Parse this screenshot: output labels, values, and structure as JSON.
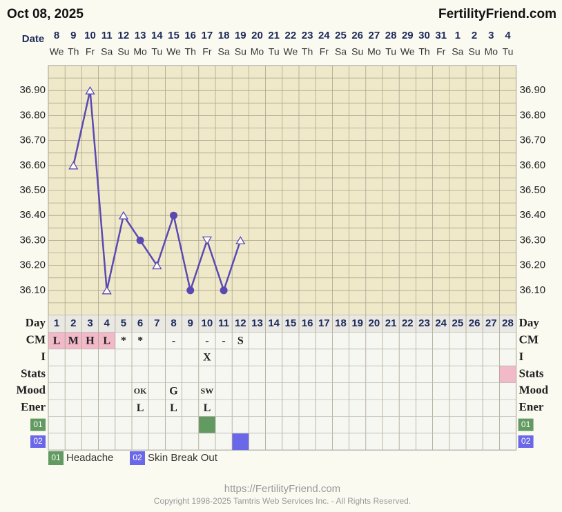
{
  "header": {
    "date": "Oct 08, 2025",
    "site": "FertilityFriend.com"
  },
  "chart_data": {
    "type": "line",
    "x_label": "Date",
    "categories": [
      "8",
      "9",
      "10",
      "11",
      "12",
      "13",
      "14",
      "15",
      "16",
      "17",
      "18",
      "19",
      "20",
      "21",
      "22",
      "23",
      "24",
      "25",
      "26",
      "27",
      "28",
      "29",
      "30",
      "31",
      "1",
      "2",
      "3",
      "4"
    ],
    "weekdays": [
      "We",
      "Th",
      "Fr",
      "Sa",
      "Su",
      "Mo",
      "Tu",
      "We",
      "Th",
      "Fr",
      "Sa",
      "Su",
      "Mo",
      "Tu",
      "We",
      "Th",
      "Fr",
      "Sa",
      "Su",
      "Mo",
      "Tu",
      "We",
      "Th",
      "Fr",
      "Sa",
      "Su",
      "Mo",
      "Tu"
    ],
    "series": [
      {
        "color": "#5a49b3",
        "values": [
          null,
          36.6,
          36.9,
          36.1,
          36.4,
          36.3,
          36.2,
          36.4,
          36.1,
          36.3,
          36.1,
          36.3,
          null,
          null,
          null,
          null,
          null,
          null,
          null,
          null,
          null,
          null,
          null,
          null,
          null,
          null,
          null,
          null
        ],
        "markers": [
          null,
          "triangle",
          "triangle",
          "triangle",
          "triangle",
          "dot",
          "triangle",
          "dot",
          "dot",
          "triangle-down",
          "dot",
          "triangle",
          null,
          null,
          null,
          null,
          null,
          null,
          null,
          null,
          null,
          null,
          null,
          null,
          null,
          null,
          null,
          null
        ]
      }
    ],
    "ylim": [
      36.0,
      37.0
    ],
    "yticks": [
      {
        "value": 36.1,
        "label": "36.10"
      },
      {
        "value": 36.2,
        "label": "36.20"
      },
      {
        "value": 36.3,
        "label": "36.30"
      },
      {
        "value": 36.4,
        "label": "36.40"
      },
      {
        "value": 36.5,
        "label": "36.50"
      },
      {
        "value": 36.6,
        "label": "36.60"
      },
      {
        "value": 36.7,
        "label": "36.70"
      },
      {
        "value": 36.8,
        "label": "36.80"
      },
      {
        "value": 36.9,
        "label": "36.90"
      }
    ],
    "minor_yticks": [
      36.05,
      36.15,
      36.25,
      36.35,
      36.45,
      36.55,
      36.65,
      36.75,
      36.85,
      36.95
    ],
    "grid": true,
    "background": "#efe9c9"
  },
  "table": {
    "day_label": "Day",
    "days": [
      1,
      2,
      3,
      4,
      5,
      6,
      7,
      8,
      9,
      10,
      11,
      12,
      13,
      14,
      15,
      16,
      17,
      18,
      19,
      20,
      21,
      22,
      23,
      24,
      25,
      26,
      27,
      28
    ],
    "rows": [
      {
        "label": "CM",
        "cells": [
          "L",
          "M",
          "H",
          "L",
          "*",
          "*",
          null,
          "-",
          null,
          "-",
          "-",
          "S",
          null,
          null,
          null,
          null,
          null,
          null,
          null,
          null,
          null,
          null,
          null,
          null,
          null,
          null,
          null,
          null
        ],
        "fills": [
          {
            "day": 1,
            "color": "#f2b9c9"
          },
          {
            "day": 2,
            "color": "#f2b9c9"
          },
          {
            "day": 3,
            "color": "#f2b9c9"
          },
          {
            "day": 4,
            "color": "#f2b9c9"
          }
        ]
      },
      {
        "label": "I",
        "cells": [
          null,
          null,
          null,
          null,
          null,
          null,
          null,
          null,
          null,
          "X",
          null,
          null,
          null,
          null,
          null,
          null,
          null,
          null,
          null,
          null,
          null,
          null,
          null,
          null,
          null,
          null,
          null,
          null
        ]
      },
      {
        "label": "Stats",
        "fills": [
          {
            "day": 28,
            "color": "#f2b9c9"
          }
        ]
      },
      {
        "label": "Mood",
        "cells": [
          null,
          null,
          null,
          null,
          null,
          "OK",
          null,
          "G",
          null,
          "SW",
          null,
          null,
          null,
          null,
          null,
          null,
          null,
          null,
          null,
          null,
          null,
          null,
          null,
          null,
          null,
          null,
          null,
          null
        ]
      },
      {
        "label": "Ener",
        "cells": [
          null,
          null,
          null,
          null,
          null,
          "L",
          null,
          "L",
          null,
          "L",
          null,
          null,
          null,
          null,
          null,
          null,
          null,
          null,
          null,
          null,
          null,
          null,
          null,
          null,
          null,
          null,
          null,
          null
        ]
      },
      {
        "label": "01",
        "tag_color": "#629a62",
        "fills": [
          {
            "day": 10,
            "color": "#629a62"
          }
        ]
      },
      {
        "label": "02",
        "tag_color": "#6a68e8",
        "fills": [
          {
            "day": 12,
            "color": "#6a68e8"
          }
        ]
      }
    ]
  },
  "legend": [
    {
      "code": "01",
      "name": "Headache",
      "color": "#629a62"
    },
    {
      "code": "02",
      "name": "Skin Break Out",
      "color": "#6a68e8"
    }
  ],
  "footer": {
    "url": "https://FertilityFriend.com",
    "copyright": "Copyright 1998-2025 Tamtris Web Services Inc. - All Rights Reserved."
  }
}
